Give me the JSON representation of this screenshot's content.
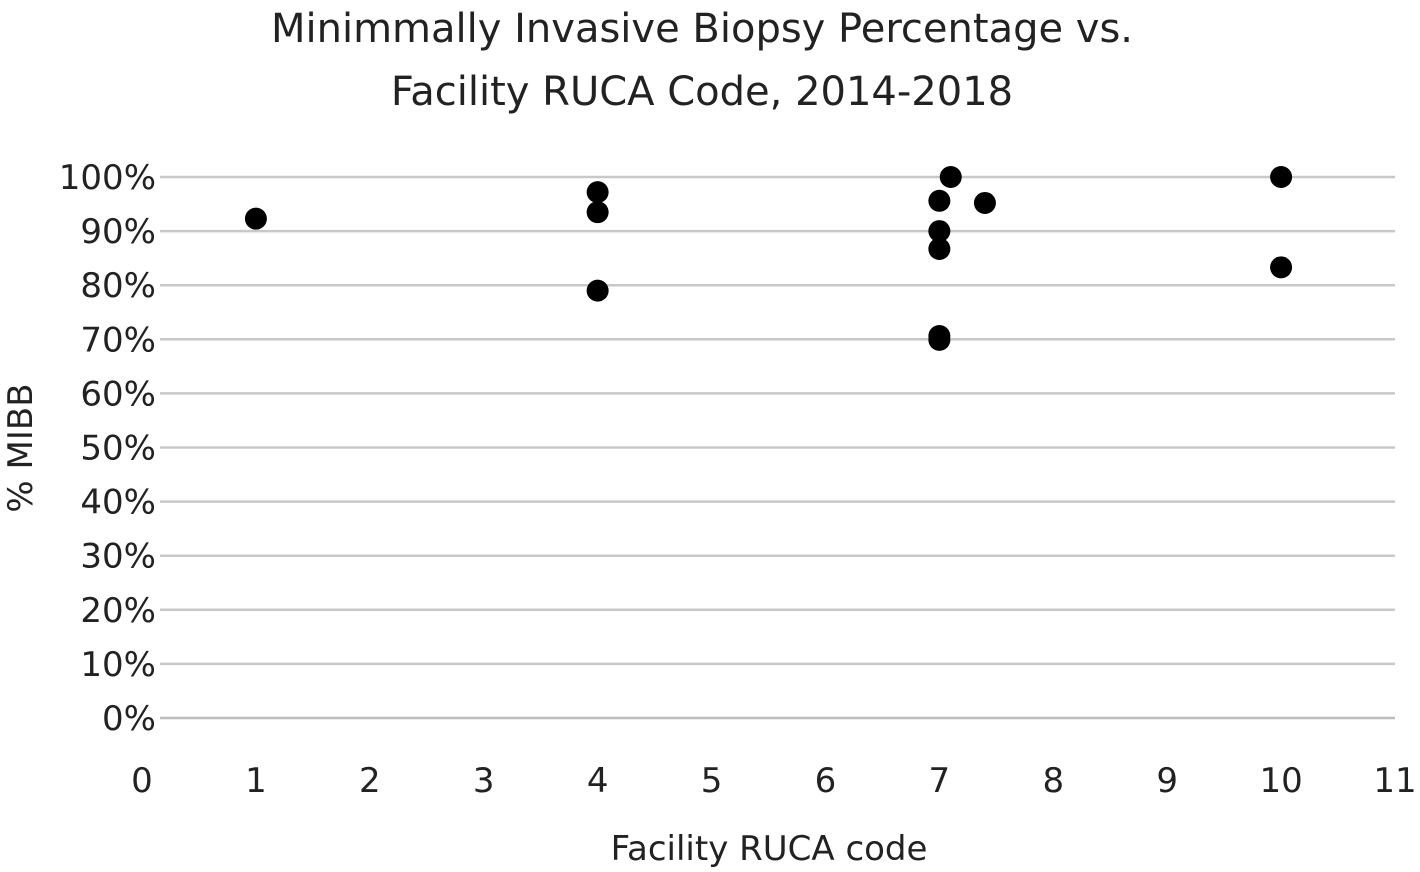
{
  "chart_data": {
    "type": "scatter",
    "title": [
      "Minimmally Invasive Biopsy Percentage vs.",
      "Facility RUCA Code, 2014-2018"
    ],
    "xlabel": "Facility RUCA code",
    "ylabel": "% MIBB",
    "xlim": [
      0,
      11
    ],
    "ylim": [
      0,
      100
    ],
    "x_ticks": [
      "0",
      "1",
      "2",
      "3",
      "4",
      "5",
      "6",
      "7",
      "8",
      "9",
      "10",
      "11"
    ],
    "y_ticks": [
      "0%",
      "10%",
      "20%",
      "30%",
      "40%",
      "50%",
      "60%",
      "70%",
      "80%",
      "90%",
      "100%"
    ],
    "grid": "horizontal",
    "legend": "none",
    "marker_color": "#000000",
    "series": [
      {
        "points": [
          {
            "x": 1,
            "y": 92.3
          },
          {
            "x": 4,
            "y": 97.2
          },
          {
            "x": 4,
            "y": 93.5
          },
          {
            "x": 4,
            "y": 79.0
          },
          {
            "x": 7.1,
            "y": 100
          },
          {
            "x": 7,
            "y": 95.6
          },
          {
            "x": 7.4,
            "y": 95.2
          },
          {
            "x": 7,
            "y": 90.0
          },
          {
            "x": 7,
            "y": 86.7
          },
          {
            "x": 7,
            "y": 70.6
          },
          {
            "x": 7,
            "y": 69.9
          },
          {
            "x": 10,
            "y": 100
          },
          {
            "x": 10,
            "y": 83.3
          }
        ]
      }
    ]
  }
}
